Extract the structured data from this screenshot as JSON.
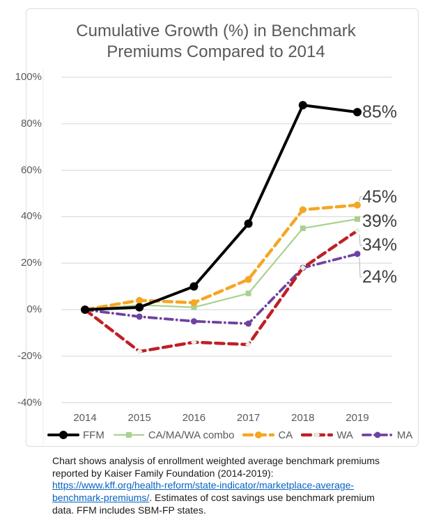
{
  "title": {
    "line1": "Cumulative Growth (%) in Benchmark",
    "line2": "Premiums Compared to 2014"
  },
  "chart_data": {
    "type": "line",
    "title": "Cumulative Growth (%) in Benchmark Premiums Compared to 2014",
    "x": [
      2014,
      2015,
      2016,
      2017,
      2018,
      2019
    ],
    "x_tick_labels": [
      "2014",
      "2015",
      "2016",
      "2017",
      "2018",
      "2019"
    ],
    "y_ticks": [
      {
        "label": "100%",
        "value": 100
      },
      {
        "label": "80%",
        "value": 80
      },
      {
        "label": "60%",
        "value": 60
      },
      {
        "label": "40%",
        "value": 40
      },
      {
        "label": "20%",
        "value": 20
      },
      {
        "label": "0%",
        "value": 0
      },
      {
        "label": "-20%",
        "value": -20
      },
      {
        "label": "-40%",
        "value": -40
      }
    ],
    "ylim": [
      -40,
      100
    ],
    "grid": true,
    "legend_position": "bottom",
    "series": [
      {
        "name": "FFM",
        "values": [
          0,
          1,
          10,
          37,
          88,
          85
        ],
        "color": "#000000",
        "style": "solid",
        "marker": "circle",
        "line_width": 4,
        "z": 5,
        "end_label": "85%",
        "end_label_dy": 0
      },
      {
        "name": "CA/MA/WA combo",
        "values": [
          0,
          2,
          1,
          7,
          35,
          39
        ],
        "color": "#a9d18e",
        "style": "solid",
        "marker": "square",
        "line_width": 2.2,
        "z": 1,
        "end_label": "39%",
        "end_label_dy": 3
      },
      {
        "name": "CA",
        "values": [
          0,
          4,
          3,
          13,
          43,
          45
        ],
        "color": "#f5a623",
        "style": "dashed",
        "marker": "circle",
        "line_width": 4.5,
        "z": 2,
        "end_label": "45%",
        "end_label_dy": -12
      },
      {
        "name": "WA",
        "values": [
          0,
          -18,
          -14,
          -15,
          18,
          34
        ],
        "color": "#bf2026",
        "style": "dashed",
        "marker": "diamond",
        "line_width": 4.5,
        "z": 4,
        "end_label": "34%",
        "end_label_dy": 21
      },
      {
        "name": "MA",
        "values": [
          0,
          -3,
          -5,
          -6,
          18,
          24
        ],
        "color": "#6f42a0",
        "style": "dashdot",
        "marker": "circle",
        "line_width": 3.8,
        "z": 3,
        "end_label": "24%",
        "end_label_dy": 33
      }
    ]
  },
  "caption": {
    "text_before": "Chart shows analysis of enrollment weighted average benchmark premiums reported by Kaiser Family Foundation (2014-2019): ",
    "link_text": "https://www.kff.org/health-reform/state-indicator/marketplace-average-benchmark-premiums/",
    "text_after": ". Estimates of cost savings use benchmark premium data. FFM includes SBM-FP states."
  },
  "colors": {
    "title_text": "#595959",
    "axis_text": "#595959",
    "gridline": "#dcdcdc",
    "end_label_text": "#3f3f3f",
    "leader_line": "#b3b3b3",
    "link": "#0563c1",
    "frame_border": "#dcdcdc"
  }
}
